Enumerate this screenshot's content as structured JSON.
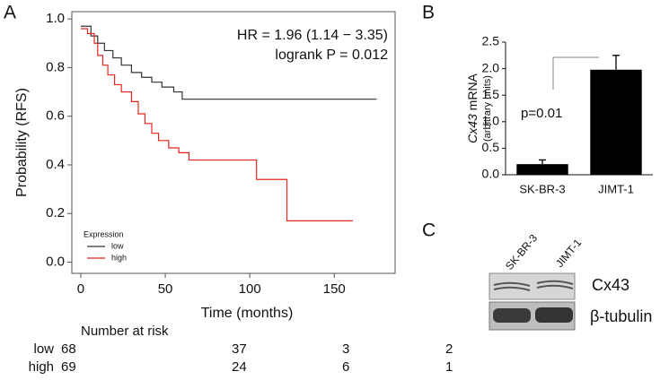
{
  "chart_data": [
    {
      "type": "step",
      "panel": "A",
      "xlabel": "Time (months)",
      "ylabel": "Probability (RFS)",
      "xlim": [
        -5.3,
        186
      ],
      "ylim": [
        -0.046,
        1.03
      ],
      "xticks": [
        0,
        50,
        100,
        150
      ],
      "yticks": [
        {
          "value": 0,
          "label": "0.0"
        },
        {
          "value": 0.2,
          "label": "0.2"
        },
        {
          "value": 0.4,
          "label": "0.4"
        },
        {
          "value": 0.6,
          "label": "0.6"
        },
        {
          "value": 0.8,
          "label": "0.8"
        },
        {
          "value": 1,
          "label": "1.0"
        }
      ],
      "annotations": [
        "HR = 1.96 (1.14 − 3.35)",
        "logrank P = 0.012"
      ],
      "legend_title": "Expression",
      "series": [
        {
          "name": "low",
          "color": "#333333",
          "x": [
            0,
            6,
            6,
            10,
            10,
            14,
            14,
            19,
            19,
            24,
            24,
            30,
            30,
            36,
            36,
            42,
            42,
            48,
            48,
            55,
            55,
            60,
            60,
            175
          ],
          "values": [
            0.97,
            0.97,
            0.93,
            0.93,
            0.9,
            0.9,
            0.87,
            0.87,
            0.84,
            0.84,
            0.81,
            0.81,
            0.78,
            0.78,
            0.76,
            0.76,
            0.74,
            0.74,
            0.72,
            0.72,
            0.7,
            0.7,
            0.67,
            0.67
          ]
        },
        {
          "name": "high",
          "color": "#e8251c",
          "x": [
            0,
            4,
            4,
            8,
            8,
            10,
            10,
            13,
            13,
            16,
            16,
            20,
            20,
            24,
            24,
            30,
            30,
            34,
            34,
            38,
            38,
            42,
            42,
            46,
            46,
            52,
            52,
            58,
            58,
            64,
            64,
            104,
            104,
            122,
            122,
            161
          ],
          "values": [
            0.96,
            0.96,
            0.94,
            0.94,
            0.9,
            0.9,
            0.85,
            0.85,
            0.81,
            0.81,
            0.77,
            0.77,
            0.73,
            0.73,
            0.7,
            0.7,
            0.66,
            0.66,
            0.61,
            0.61,
            0.57,
            0.57,
            0.53,
            0.53,
            0.5,
            0.5,
            0.47,
            0.47,
            0.45,
            0.45,
            0.42,
            0.42,
            0.34,
            0.34,
            0.17,
            0.17
          ]
        }
      ],
      "risk_table": {
        "title": "Number at risk",
        "rows": [
          {
            "name": "low",
            "color": "#111111",
            "values": [
              68,
              37,
              3,
              2
            ]
          },
          {
            "name": "high",
            "color": "#e8251c",
            "values": [
              69,
              24,
              6,
              1
            ]
          }
        ]
      }
    },
    {
      "type": "bar",
      "panel": "B",
      "ylabel_italic": "Cx43",
      "ylabel": "mRNA",
      "ylabel_sub": "(arbitrary units)",
      "categories": [
        "SK-BR-3",
        "JIMT-1"
      ],
      "values": [
        0.2,
        1.98
      ],
      "errors": [
        0.08,
        0.27
      ],
      "color": "#000000",
      "ylim": [
        0,
        2.5
      ],
      "yticks": [
        {
          "value": 0,
          "label": "0.0"
        },
        {
          "value": 0.5,
          "label": "0.5"
        },
        {
          "value": 1,
          "label": "1.0"
        },
        {
          "value": 1.5,
          "label": "1.5"
        },
        {
          "value": 2,
          "label": "2.0"
        },
        {
          "value": 2.5,
          "label": "2.5"
        }
      ],
      "annotation": "p=0.01"
    }
  ],
  "panel_c": {
    "label": "C",
    "lanes": [
      "SK-BR-3",
      "JIMT-1"
    ],
    "bands": [
      "Cx43",
      "β-tubulin"
    ]
  }
}
